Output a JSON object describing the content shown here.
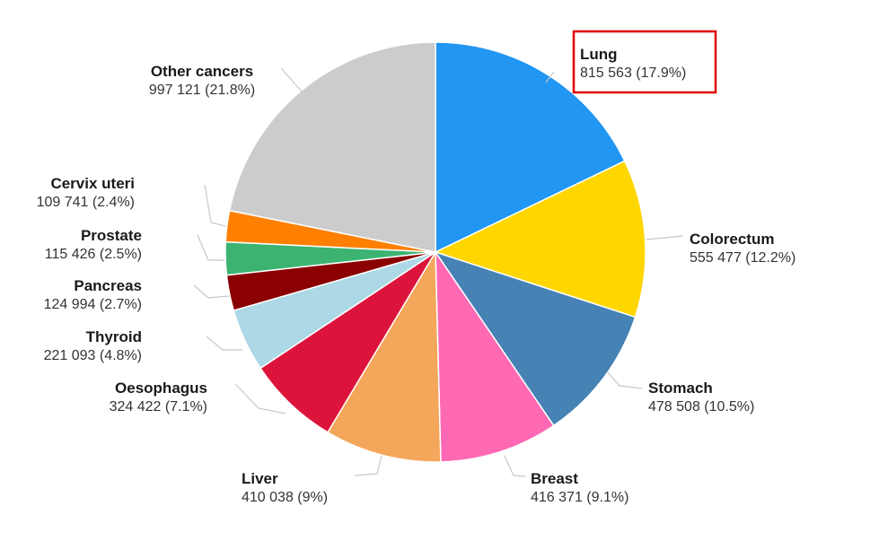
{
  "chart_data": {
    "type": "pie",
    "title": "",
    "slices": [
      {
        "name": "Lung",
        "value": 815563,
        "percent": "17.9%",
        "label_value": "815 563 (17.9%)",
        "color": "#2196f3",
        "highlighted": true
      },
      {
        "name": "Colorectum",
        "value": 555477,
        "percent": "12.2%",
        "label_value": "555 477 (12.2%)",
        "color": "#ffd600"
      },
      {
        "name": "Stomach",
        "value": 478508,
        "percent": "10.5%",
        "label_value": "478 508 (10.5%)",
        "color": "#4682b4"
      },
      {
        "name": "Breast",
        "value": 416371,
        "percent": "9.1%",
        "label_value": "416 371 (9.1%)",
        "color": "#ff69b4"
      },
      {
        "name": "Liver",
        "value": 410038,
        "percent": "9%",
        "label_value": "410 038 (9%)",
        "color": "#f4a65a"
      },
      {
        "name": "Oesophagus",
        "value": 324422,
        "percent": "7.1%",
        "label_value": "324 422 (7.1%)",
        "color": "#dc143c"
      },
      {
        "name": "Thyroid",
        "value": 221093,
        "percent": "4.8%",
        "label_value": "221 093 (4.8%)",
        "color": "#add8e6"
      },
      {
        "name": "Pancreas",
        "value": 124994,
        "percent": "2.7%",
        "label_value": "124 994 (2.7%)",
        "color": "#8b0000"
      },
      {
        "name": "Prostate",
        "value": 115426,
        "percent": "2.5%",
        "label_value": "115 426 (2.5%)",
        "color": "#3cb371"
      },
      {
        "name": "Cervix uteri",
        "value": 109741,
        "percent": "2.4%",
        "label_value": "109 741 (2.4%)",
        "color": "#ff7f00"
      },
      {
        "name": "Other cancers",
        "value": 997121,
        "percent": "21.8%",
        "label_value": "997 121 (21.8%)",
        "color": "#cccccc"
      }
    ],
    "start_angle_deg": 0,
    "direction": "clockwise",
    "legend": "none"
  }
}
